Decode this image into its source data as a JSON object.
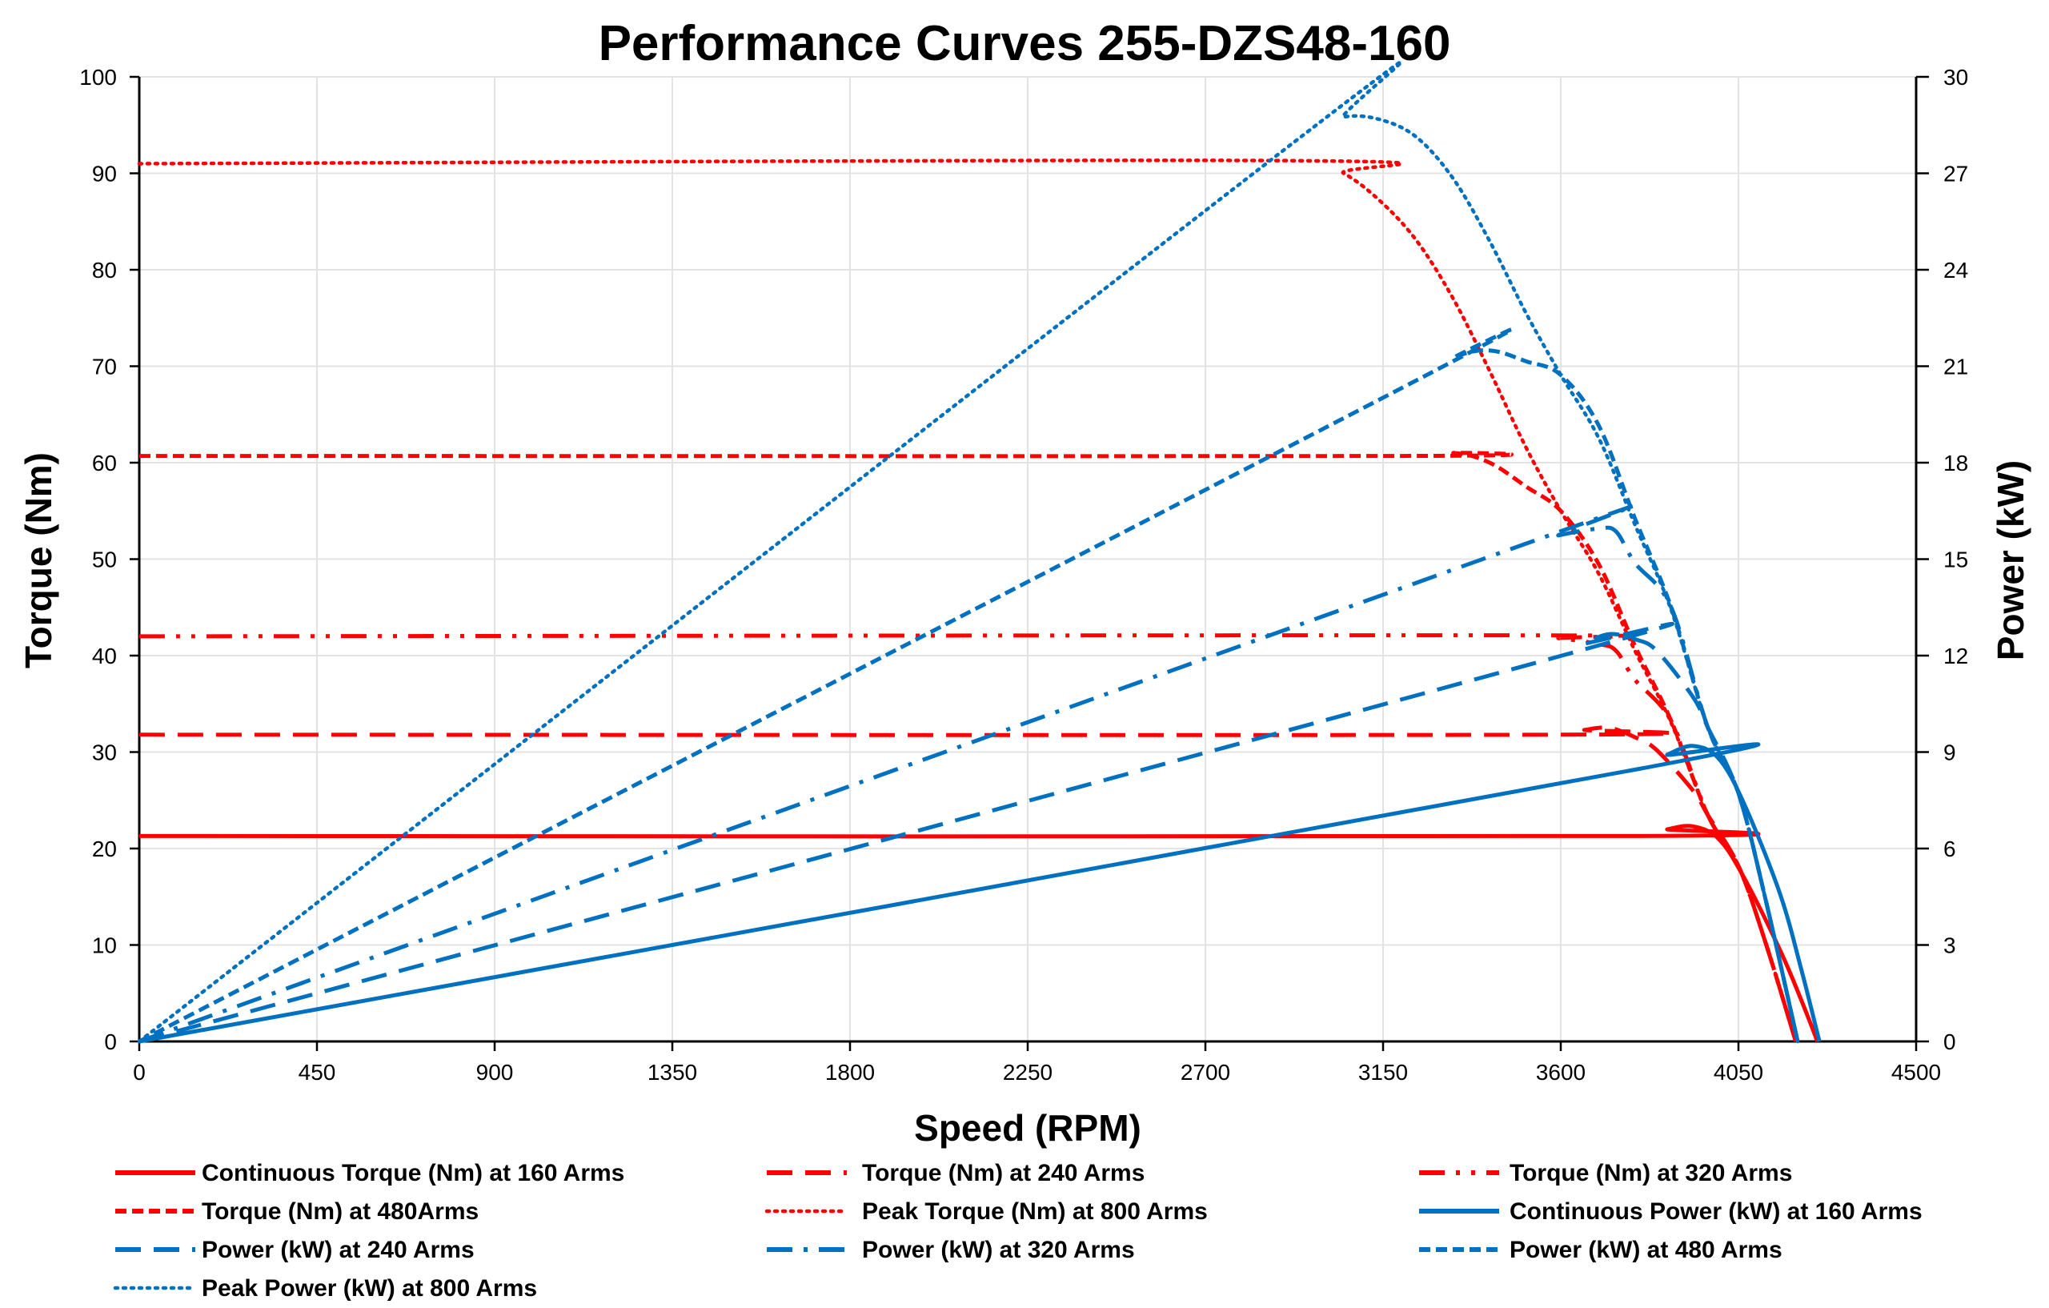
{
  "chart_data": {
    "type": "line",
    "title": "Performance Curves 255-DZS48-160",
    "xlabel": "Speed (RPM)",
    "ylabel": "Torque (Nm)",
    "y2label": "Power (kW)",
    "xlim": [
      0,
      4500
    ],
    "ylim": [
      0,
      100
    ],
    "y2lim": [
      0,
      30
    ],
    "xticks": [
      0,
      450,
      900,
      1350,
      1800,
      2250,
      2700,
      3150,
      3600,
      4050,
      4500
    ],
    "yticks": [
      0,
      10,
      20,
      30,
      40,
      50,
      60,
      70,
      80,
      90,
      100
    ],
    "y2ticks": [
      0,
      3,
      6,
      9,
      12,
      15,
      18,
      21,
      24,
      27,
      30
    ],
    "grid": true,
    "legend_position": "bottom",
    "colors": {
      "torque": "#ff0000",
      "power": "#0070c0"
    },
    "series": [
      {
        "name": "Continuous Torque (Nm) at 160 Arms",
        "axis": "left",
        "color": "#ff0000",
        "style": "solid",
        "x": [
          0,
          3800,
          3870,
          3935,
          4000,
          4064,
          4155,
          4210,
          4250
        ],
        "y": [
          21.3,
          21.3,
          22.0,
          22.3,
          21.0,
          17.0,
          9.5,
          4.2,
          0
        ]
      },
      {
        "name": "Torque (Nm) at 240 Arms",
        "axis": "left",
        "color": "#ff0000",
        "style": "dash",
        "x": [
          0,
          3600,
          3660,
          3724,
          3790,
          3843,
          3935,
          3972,
          4050,
          4119,
          4195
        ],
        "y": [
          31.8,
          31.8,
          32.3,
          32.5,
          31.5,
          30.2,
          26.0,
          23.5,
          18.2,
          10.2,
          0
        ]
      },
      {
        "name": "Torque (Nm) at 320 Arms",
        "axis": "left",
        "color": "#ff0000",
        "style": "dashdotdot",
        "x": [
          0,
          3500,
          3595,
          3696,
          3740,
          3788,
          3880,
          3972,
          4050,
          4119,
          4195
        ],
        "y": [
          42.0,
          42.1,
          41.8,
          41.2,
          40.5,
          37.5,
          33.2,
          23.5,
          18.2,
          10.2,
          0
        ]
      },
      {
        "name": "Torque (Nm) at 480Arms",
        "axis": "left",
        "color": "#ff0000",
        "style": "shortdash",
        "x": [
          0,
          3200,
          3330,
          3420,
          3513,
          3600,
          3696,
          3788,
          3880,
          3972,
          4050,
          4119,
          4195
        ],
        "y": [
          60.7,
          60.7,
          61.0,
          60.0,
          57.5,
          55.0,
          49.5,
          41.0,
          33.2,
          23.5,
          18.2,
          10.2,
          0
        ]
      },
      {
        "name": "Peak Torque (Nm) at 800  Arms",
        "axis": "left",
        "color": "#ff0000",
        "style": "dot",
        "x": [
          0,
          2950,
          3050,
          3146,
          3237,
          3329,
          3420,
          3513,
          3600,
          3696,
          3788,
          3880,
          3972,
          4050,
          4119,
          4195
        ],
        "y": [
          91.0,
          91.3,
          90.0,
          87.0,
          82.9,
          76.9,
          69.5,
          61.5,
          55.0,
          48.5,
          40.5,
          33.0,
          23.5,
          18.2,
          10.2,
          0
        ]
      },
      {
        "name": "Continuous Power (kW) at 160 Arms",
        "axis": "right",
        "color": "#0070c0",
        "style": "solid",
        "x": [
          0,
          3800,
          3870,
          3935,
          4000,
          4064,
          4155,
          4210,
          4255
        ],
        "y": [
          0,
          8.48,
          8.92,
          9.19,
          8.8,
          7.4,
          4.6,
          2.2,
          0
        ]
      },
      {
        "name": "Power (kW) at 240 Arms",
        "axis": "right",
        "color": "#0070c0",
        "style": "dash",
        "x": [
          0,
          3600,
          3660,
          3724,
          3790,
          3843,
          3935,
          3972,
          4050,
          4119,
          4200
        ],
        "y": [
          0,
          11.99,
          12.38,
          12.67,
          12.5,
          12.15,
          10.71,
          9.78,
          7.72,
          4.4,
          0
        ]
      },
      {
        "name": "Power (kW) at 320 Arms",
        "axis": "right",
        "color": "#0070c0",
        "style": "dashdot",
        "x": [
          0,
          3500,
          3595,
          3696,
          3740,
          3788,
          3880,
          3972,
          4050,
          4119,
          4200
        ],
        "y": [
          0,
          15.43,
          15.74,
          15.95,
          15.86,
          14.88,
          13.49,
          9.78,
          7.72,
          4.4,
          0
        ]
      },
      {
        "name": "Power (kW) at 480 Arms",
        "axis": "right",
        "color": "#0070c0",
        "style": "shortdash",
        "x": [
          0,
          3200,
          3330,
          3420,
          3513,
          3600,
          3696,
          3788,
          3880,
          3972,
          4050,
          4119,
          4200
        ],
        "y": [
          0,
          20.34,
          21.27,
          21.49,
          21.15,
          20.73,
          19.16,
          16.26,
          13.49,
          9.78,
          7.72,
          4.4,
          0
        ]
      },
      {
        "name": "Peak Power (kW) at 800 Arms",
        "axis": "right",
        "color": "#0070c0",
        "style": "dot",
        "x": [
          0,
          2950,
          3050,
          3146,
          3237,
          3329,
          3420,
          3513,
          3600,
          3696,
          3788,
          3880,
          3972,
          4050,
          4119,
          4200
        ],
        "y": [
          0,
          28.21,
          28.75,
          28.66,
          28.1,
          26.81,
          24.89,
          22.63,
          20.73,
          18.77,
          16.07,
          13.41,
          9.78,
          7.72,
          4.4,
          0
        ]
      }
    ]
  }
}
